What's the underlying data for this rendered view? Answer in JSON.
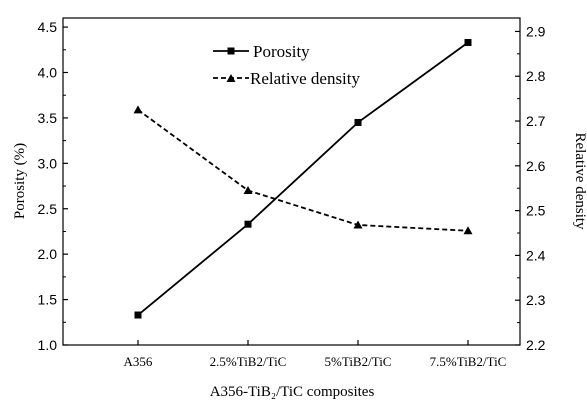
{
  "chart_data": {
    "type": "line",
    "categories": [
      "A356",
      "2.5%TiB2/TiC",
      "5%TiB2/TiC",
      "7.5%TiB2/TiC"
    ],
    "xlabel": "A356-TiB₂/TiC composites",
    "y_left": {
      "label": "Porosity (%)",
      "ylim": [
        1.0,
        4.6
      ],
      "ticks": [
        "1.0",
        "1.5",
        "2.0",
        "2.5",
        "3.0",
        "3.5",
        "4.0",
        "4.5"
      ]
    },
    "y_right": {
      "label": "Relative density",
      "ylim": [
        2.2,
        2.93
      ],
      "ticks": [
        "2.2",
        "2.3",
        "2.4",
        "2.5",
        "2.6",
        "2.7",
        "2.8",
        "2.9"
      ]
    },
    "series": [
      {
        "name": "Porosity",
        "axis": "left",
        "values": [
          1.33,
          2.33,
          3.45,
          4.33
        ],
        "marker": "square",
        "line_style": "solid",
        "color": "#000000"
      },
      {
        "name": "Relative density",
        "axis": "right",
        "values": [
          2.725,
          2.545,
          2.468,
          2.455
        ],
        "marker": "triangle",
        "line_style": "dashed",
        "color": "#000000"
      }
    ],
    "legend_position": "top-center",
    "grid": false
  }
}
